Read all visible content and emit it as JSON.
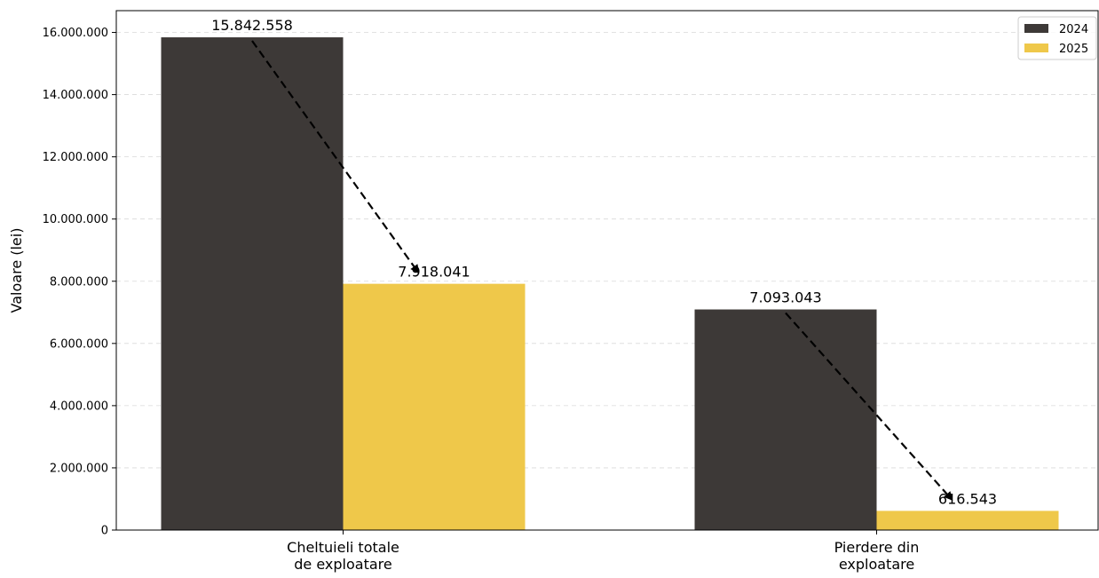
{
  "chart_data": {
    "type": "bar",
    "title": "",
    "xlabel": "",
    "ylabel": "Valoare (lei)",
    "categories": [
      [
        "Cheltuieli totale",
        "de exploatare"
      ],
      [
        "Pierdere din",
        "exploatare"
      ]
    ],
    "series": [
      {
        "name": "2024",
        "color": "#3d3937",
        "values": [
          15842558,
          7093043
        ],
        "labels": [
          "15.842.558",
          "7.093.043"
        ]
      },
      {
        "name": "2025",
        "color": "#efc84a",
        "values": [
          7918041,
          616543
        ],
        "labels": [
          "7.918.041",
          "616.543"
        ]
      }
    ],
    "ylim": [
      0,
      16700000
    ],
    "yticks": [
      0,
      2000000,
      4000000,
      6000000,
      8000000,
      10000000,
      12000000,
      14000000,
      16000000
    ],
    "ytick_labels": [
      "0",
      "2.000.000",
      "4.000.000",
      "6.000.000",
      "8.000.000",
      "10.000.000",
      "12.000.000",
      "14.000.000",
      "16.000.000"
    ],
    "grid": "horizontal-dashed",
    "legend_position": "top-right",
    "annotations": "dashed arrows from each 2024 value label to the corresponding 2025 value label"
  }
}
